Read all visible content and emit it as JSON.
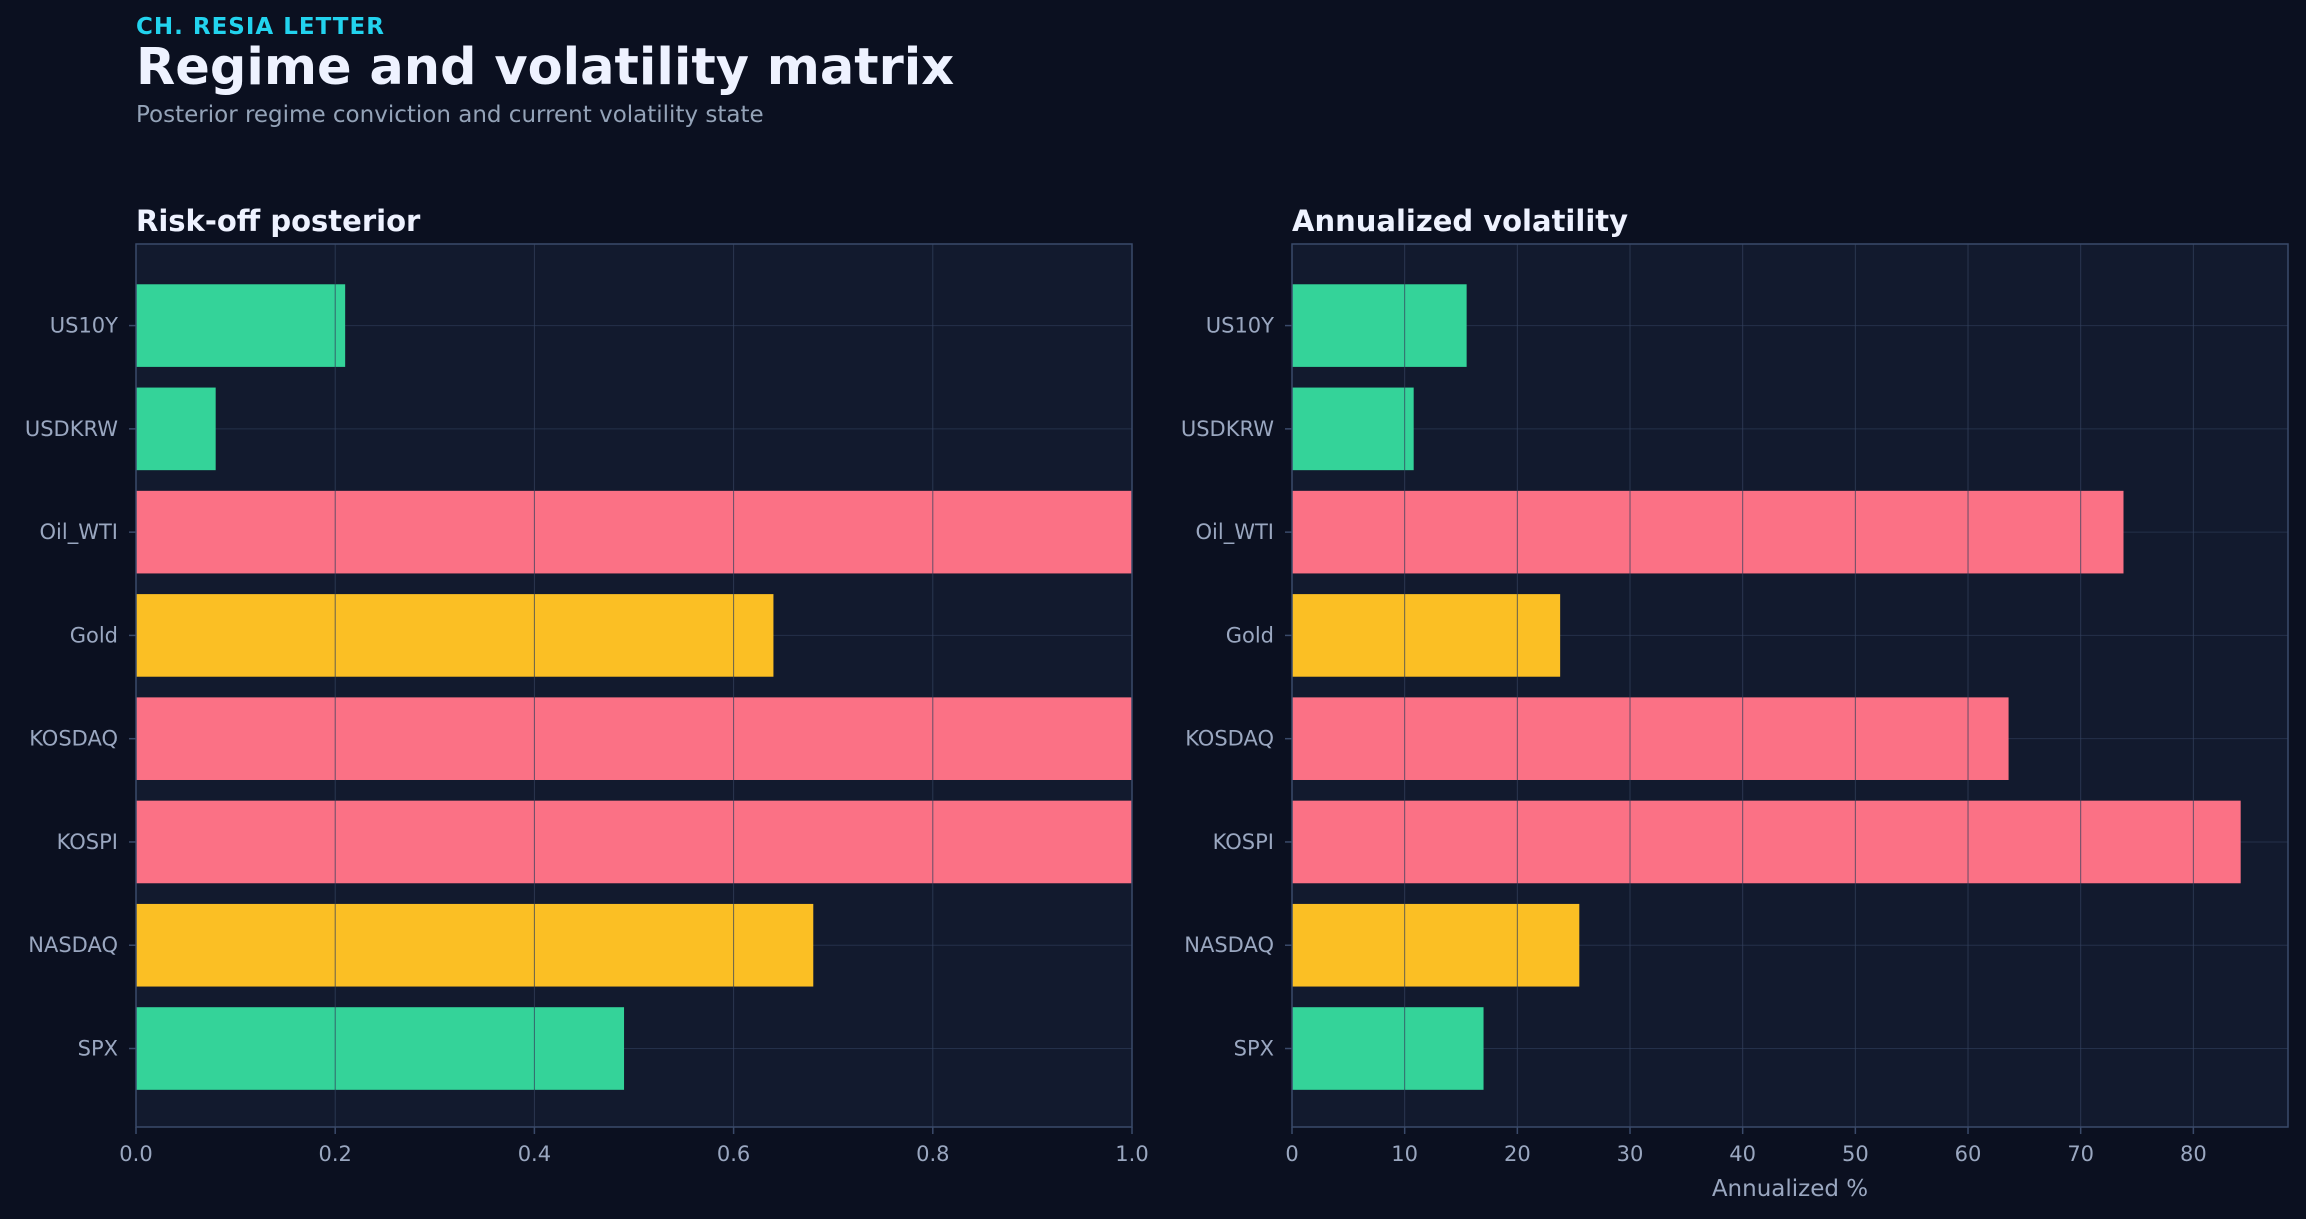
{
  "header": {
    "kicker": "CH. RESIA LETTER",
    "title": "Regime and volatility matrix",
    "subtitle": "Posterior regime conviction and current volatility state"
  },
  "colors": {
    "background": "#0b1020",
    "panel": "#121a2e",
    "grid": "#24304a",
    "spine": "#3a4a6a",
    "green": "#34d399",
    "amber": "#fbbf24",
    "red": "#fb7185",
    "kicker": "#22d3ee"
  },
  "chart_data": [
    {
      "type": "bar",
      "orientation": "horizontal",
      "title": "Risk-off posterior",
      "xlabel": "",
      "ylabel": "",
      "categories": [
        "US10Y",
        "USDKRW",
        "Oil_WTI",
        "Gold",
        "KOSDAQ",
        "KOSPI",
        "NASDAQ",
        "SPX"
      ],
      "values": [
        0.21,
        0.08,
        1.0,
        0.64,
        1.0,
        1.0,
        0.68,
        0.49
      ],
      "bar_colors": [
        "green",
        "green",
        "red",
        "amber",
        "red",
        "red",
        "amber",
        "green"
      ],
      "xlim": [
        0,
        1.0
      ],
      "xticks": [
        "0.0",
        "0.2",
        "0.4",
        "0.6",
        "0.8",
        "1.0"
      ],
      "xtick_values": [
        0,
        0.2,
        0.4,
        0.6,
        0.8,
        1.0
      ],
      "grid": true
    },
    {
      "type": "bar",
      "orientation": "horizontal",
      "title": "Annualized volatility",
      "xlabel": "Annualized %",
      "ylabel": "",
      "categories": [
        "US10Y",
        "USDKRW",
        "Oil_WTI",
        "Gold",
        "KOSDAQ",
        "KOSPI",
        "NASDAQ",
        "SPX"
      ],
      "values": [
        15.5,
        10.8,
        73.8,
        23.8,
        63.6,
        84.2,
        25.5,
        17.0
      ],
      "bar_colors": [
        "green",
        "green",
        "red",
        "amber",
        "red",
        "red",
        "amber",
        "green"
      ],
      "xlim": [
        0,
        88.4
      ],
      "xticks": [
        "0",
        "10",
        "20",
        "30",
        "40",
        "50",
        "60",
        "70",
        "80"
      ],
      "xtick_values": [
        0,
        10,
        20,
        30,
        40,
        50,
        60,
        70,
        80
      ],
      "grid": true
    }
  ]
}
